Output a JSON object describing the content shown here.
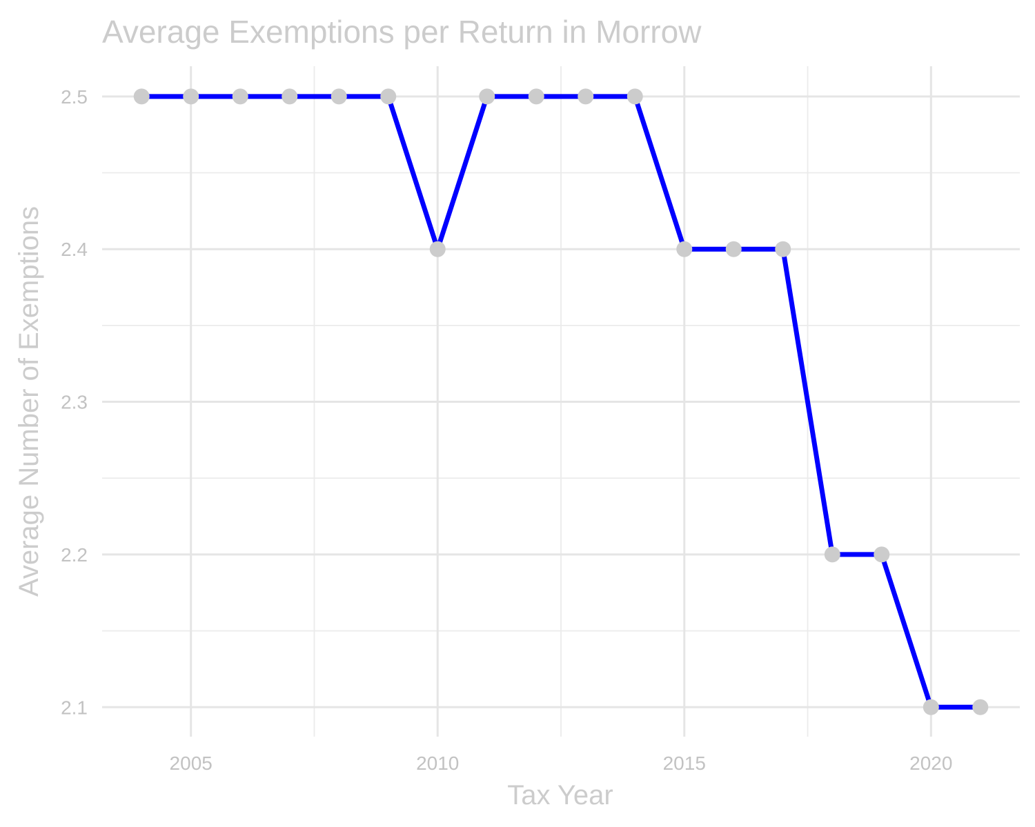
{
  "chart_data": {
    "type": "line",
    "title": "Average Exemptions per Return in Morrow",
    "xlabel": "Tax Year",
    "ylabel": "Average Number of Exemptions",
    "x": [
      2004,
      2005,
      2006,
      2007,
      2008,
      2009,
      2010,
      2011,
      2012,
      2013,
      2014,
      2015,
      2016,
      2017,
      2018,
      2019,
      2020,
      2021
    ],
    "series": [
      {
        "values": [
          2.5,
          2.5,
          2.5,
          2.5,
          2.5,
          2.5,
          2.4,
          2.5,
          2.5,
          2.5,
          2.5,
          2.4,
          2.4,
          2.4,
          2.2,
          2.2,
          2.1,
          2.1
        ],
        "line_color": "#0000ff",
        "point_color": "#cccccc"
      }
    ],
    "xlim": [
      2003.2,
      2021.8
    ],
    "ylim": [
      2.0807,
      2.5198
    ],
    "x_ticks": [
      2005,
      2010,
      2015,
      2020
    ],
    "x_tick_labels": [
      "2005",
      "2010",
      "2015",
      "2020"
    ],
    "x_minor_ticks": [
      2007.5,
      2012.5,
      2017.5
    ],
    "y_ticks": [
      2.1,
      2.2,
      2.3,
      2.4,
      2.5
    ],
    "y_tick_labels": [
      "2.1",
      "2.2",
      "2.3",
      "2.4",
      "2.5"
    ],
    "y_minor_ticks": [
      2.15,
      2.25,
      2.35,
      2.45
    ],
    "grid": true,
    "legend": "none",
    "colors": {
      "text": "#cccccc",
      "tick_text": "#c2c2c2",
      "grid": "#e5e5e5",
      "background": "#ffffff"
    }
  }
}
